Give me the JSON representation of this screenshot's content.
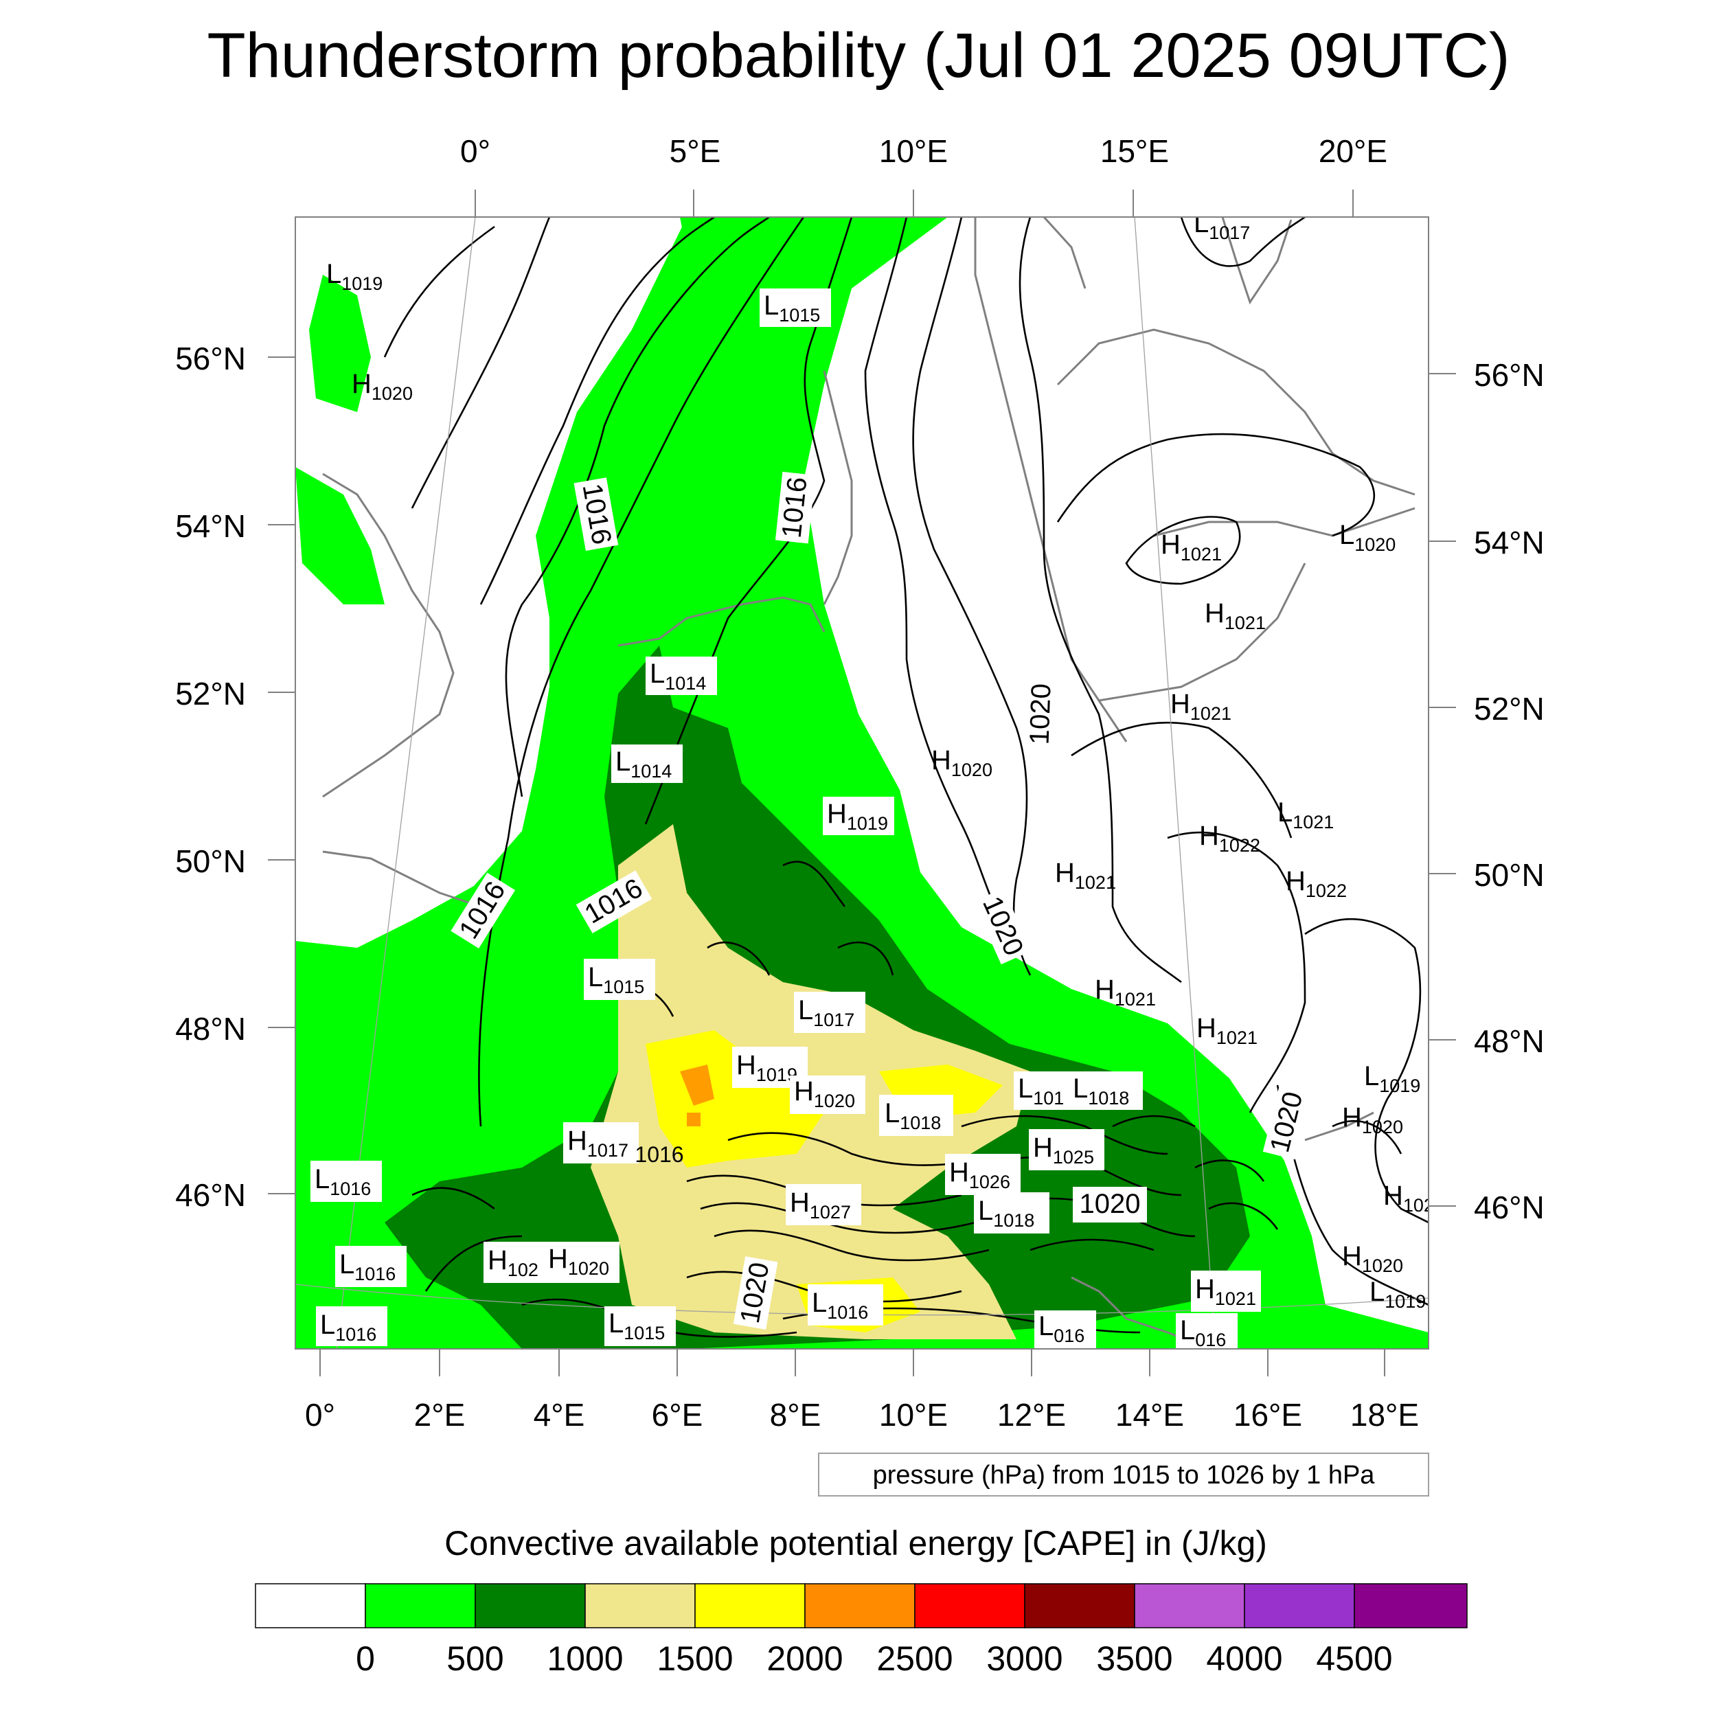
{
  "title": "Thunderstorm probability (Jul 01 2025 09UTC)",
  "top_lon_labels": [
    "0°",
    "5°E",
    "10°E",
    "15°E",
    "20°E"
  ],
  "bottom_lon_labels": [
    "0°",
    "2°E",
    "4°E",
    "6°E",
    "8°E",
    "10°E",
    "12°E",
    "14°E",
    "16°E",
    "18°E"
  ],
  "left_lat_labels": [
    "56°N",
    "54°N",
    "52°N",
    "50°N",
    "48°N",
    "46°N"
  ],
  "right_lat_labels": [
    "56°N",
    "54°N",
    "52°N",
    "50°N",
    "48°N",
    "46°N"
  ],
  "pressure_note": "pressure (hPa) from 1015 to 1026 by 1 hPa",
  "colorbar": {
    "title": "Convective available potential energy [CAPE] in (J/kg)",
    "tick_labels": [
      "0",
      "500",
      "1000",
      "1500",
      "2000",
      "2500",
      "3000",
      "3500",
      "4000",
      "4500"
    ],
    "colors": [
      "#ffffff",
      "#00ff00",
      "#008000",
      "#f0e68c",
      "#ffff00",
      "#ff8c00",
      "#ff0000",
      "#8b0000",
      "#ba55d3",
      "#9932cc",
      "#8b008b"
    ]
  },
  "colors": {
    "land_outline": "#808080",
    "isobar": "#000000",
    "grid": "#a0a0a0"
  },
  "pressure_centers": [
    {
      "letter": "L",
      "value": "1019"
    },
    {
      "letter": "H",
      "value": "1020"
    },
    {
      "letter": "L",
      "value": "1015"
    },
    {
      "letter": "L",
      "value": "1017"
    },
    {
      "letter": "L",
      "value": "1014"
    },
    {
      "letter": "L",
      "value": "1014"
    },
    {
      "letter": "H",
      "value": "1019"
    },
    {
      "letter": "H",
      "value": "1020"
    },
    {
      "letter": "H",
      "value": "1021"
    },
    {
      "letter": "L",
      "value": "1020"
    },
    {
      "letter": "H",
      "value": "1021"
    },
    {
      "letter": "H",
      "value": "1021"
    },
    {
      "letter": "L",
      "value": "1021"
    },
    {
      "letter": "H",
      "value": "1022"
    },
    {
      "letter": "H",
      "value": "1022"
    },
    {
      "letter": "H",
      "value": "1021"
    },
    {
      "letter": "H",
      "value": "1021"
    },
    {
      "letter": "H",
      "value": "1021"
    },
    {
      "letter": "L",
      "value": "1015"
    },
    {
      "letter": "L",
      "value": "1017"
    },
    {
      "letter": "H",
      "value": "1019"
    },
    {
      "letter": "H",
      "value": "1020"
    },
    {
      "letter": "L",
      "value": "101"
    },
    {
      "letter": "L",
      "value": "1018"
    },
    {
      "letter": "L",
      "value": "1018"
    },
    {
      "letter": "H",
      "value": "1017"
    },
    {
      "letter": "H",
      "value": "1025"
    },
    {
      "letter": "H",
      "value": "1026"
    },
    {
      "letter": "L",
      "value": "1018"
    },
    {
      "letter": "H",
      "value": "1027"
    },
    {
      "letter": "L",
      "value": "1016"
    },
    {
      "letter": "L",
      "value": "1016"
    },
    {
      "letter": "H",
      "value": "102"
    },
    {
      "letter": "H",
      "value": "1020"
    },
    {
      "letter": "L",
      "value": "1016"
    },
    {
      "letter": "L",
      "value": "1016"
    },
    {
      "letter": "L",
      "value": "1015"
    },
    {
      "letter": "L",
      "value": "1019"
    },
    {
      "letter": "H",
      "value": "1020"
    },
    {
      "letter": "H",
      "value": "102"
    },
    {
      "letter": "H",
      "value": "1020"
    },
    {
      "letter": "H",
      "value": "1021"
    },
    {
      "letter": "L",
      "value": "1019"
    },
    {
      "letter": "L",
      "value": "016"
    },
    {
      "letter": "L",
      "value": "016"
    }
  ],
  "contour_labels": [
    "1016",
    "1016",
    "1016",
    "1016",
    "1020",
    "1020",
    "1020",
    "1020",
    "1016",
    "1020"
  ]
}
